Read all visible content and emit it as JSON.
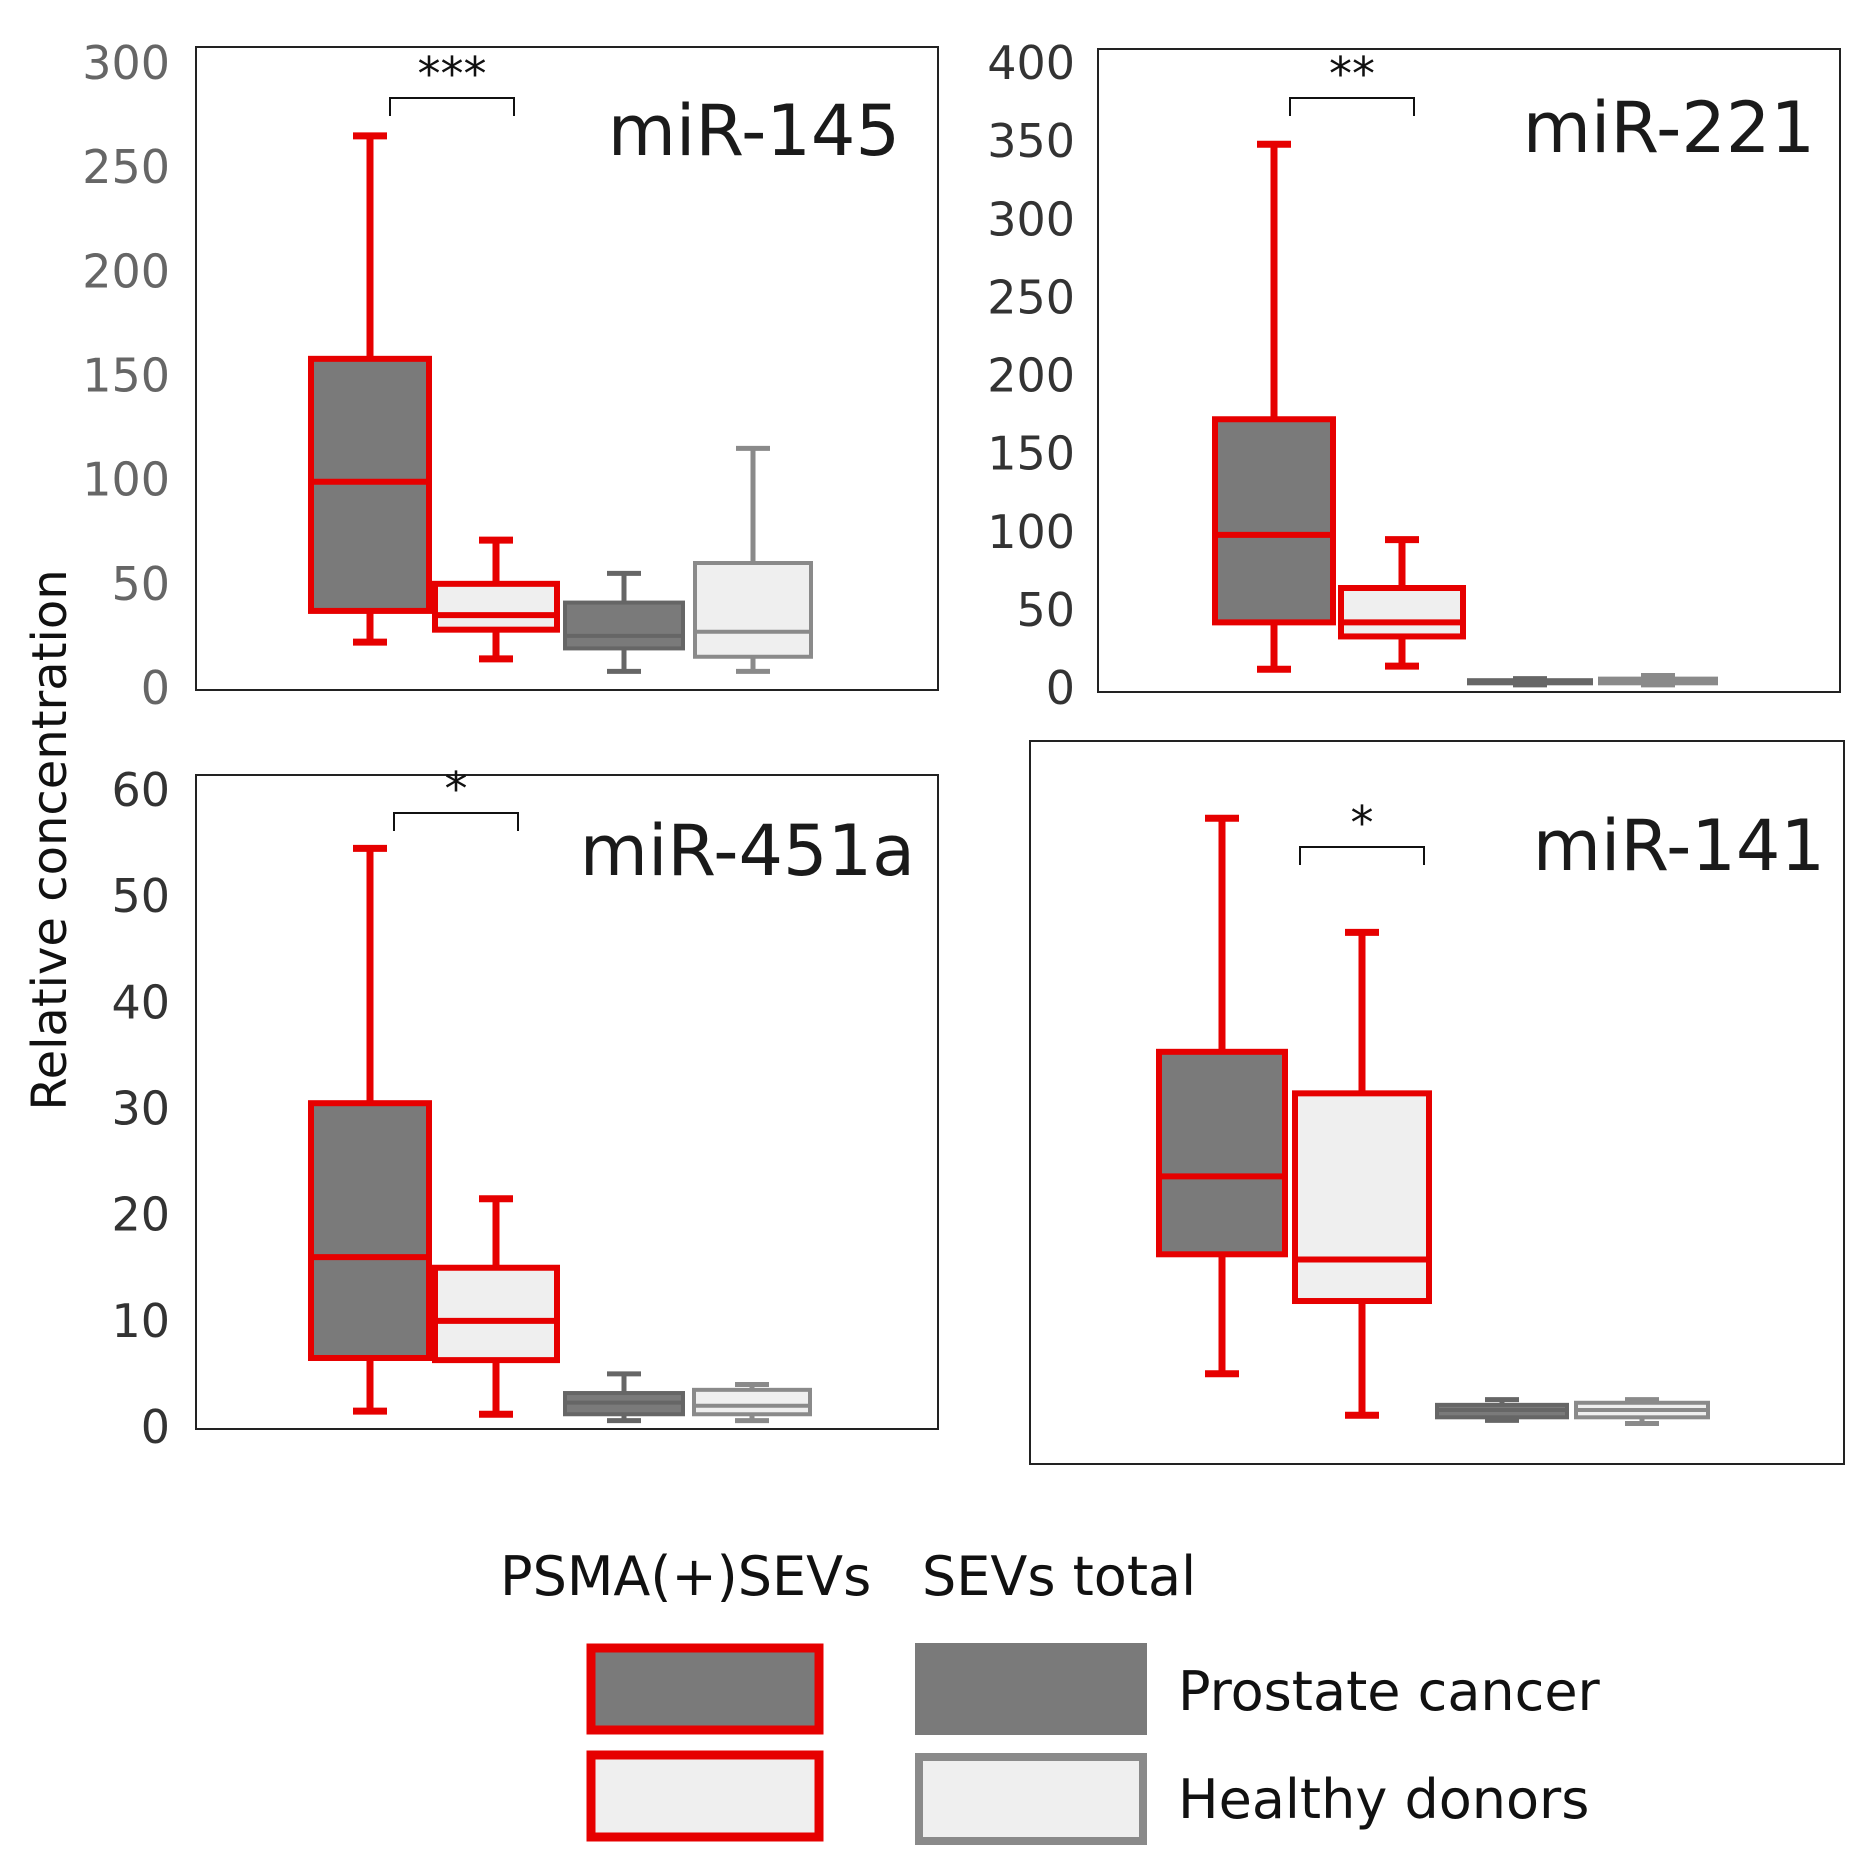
{
  "ylabel": "Relative concentration",
  "colors": {
    "psma_border": "#e60000",
    "prostate_fill": "#7a7a7a",
    "healthy_fill": "#efefef",
    "total_prostate_border": "#666666",
    "total_healthy_border": "#8a8a8a",
    "axis": "#222222"
  },
  "legend": {
    "psma_header": "PSMA(+)SEVs",
    "total_header": "SEVs total",
    "prostate_label": "Prostate cancer",
    "healthy_label": "Healthy donors"
  },
  "chart_data": [
    {
      "type": "box",
      "title": "miR-145",
      "ylim": [
        0,
        300
      ],
      "yticks": [
        0,
        50,
        100,
        150,
        200,
        250,
        300
      ],
      "significance": "***",
      "boxes": [
        {
          "group": "PSMA(+)SEVs",
          "condition": "Prostate cancer",
          "min": 22,
          "q1": 37,
          "median": 99,
          "q3": 158,
          "max": 265
        },
        {
          "group": "PSMA(+)SEVs",
          "condition": "Healthy donors",
          "min": 14,
          "q1": 28,
          "median": 35,
          "q3": 50,
          "max": 71
        },
        {
          "group": "SEVs total",
          "condition": "Prostate cancer",
          "min": 8,
          "q1": 19,
          "median": 25,
          "q3": 41,
          "max": 55
        },
        {
          "group": "SEVs total",
          "condition": "Healthy donors",
          "min": 8,
          "q1": 15,
          "median": 27,
          "q3": 60,
          "max": 115
        }
      ]
    },
    {
      "type": "box",
      "title": "miR-221",
      "ylim": [
        0,
        400
      ],
      "yticks": [
        0,
        50,
        100,
        150,
        200,
        250,
        300,
        350,
        400
      ],
      "significance": "**",
      "boxes": [
        {
          "group": "PSMA(+)SEVs",
          "condition": "Prostate cancer",
          "min": 12,
          "q1": 42,
          "median": 98,
          "q3": 172,
          "max": 348
        },
        {
          "group": "PSMA(+)SEVs",
          "condition": "Healthy donors",
          "min": 14,
          "q1": 33,
          "median": 42,
          "q3": 64,
          "max": 95
        },
        {
          "group": "SEVs total",
          "condition": "Prostate cancer",
          "min": 2,
          "q1": 3,
          "median": 4,
          "q3": 5,
          "max": 6
        },
        {
          "group": "SEVs total",
          "condition": "Healthy donors",
          "min": 2,
          "q1": 3,
          "median": 5,
          "q3": 6,
          "max": 8
        }
      ]
    },
    {
      "type": "box",
      "title": "miR-451a",
      "ylim": [
        0,
        60
      ],
      "yticks": [
        0,
        10,
        20,
        30,
        40,
        50,
        60
      ],
      "significance": "*",
      "boxes": [
        {
          "group": "PSMA(+)SEVs",
          "condition": "Prostate cancer",
          "min": 1.5,
          "q1": 6.5,
          "median": 16,
          "q3": 30.5,
          "max": 54.5
        },
        {
          "group": "PSMA(+)SEVs",
          "condition": "Healthy donors",
          "min": 1.2,
          "q1": 6.3,
          "median": 10,
          "q3": 15,
          "max": 21.5
        },
        {
          "group": "SEVs total",
          "condition": "Prostate cancer",
          "min": 0.6,
          "q1": 1.2,
          "median": 2.3,
          "q3": 3.2,
          "max": 5
        },
        {
          "group": "SEVs total",
          "condition": "Healthy donors",
          "min": 0.6,
          "q1": 1.2,
          "median": 2,
          "q3": 3.5,
          "max": 4
        }
      ]
    },
    {
      "type": "box",
      "title": "miR-141",
      "ylim": [
        -2,
        58
      ],
      "yticks": [],
      "significance": "*",
      "boxes": [
        {
          "group": "PSMA(+)SEVs",
          "condition": "Prostate cancer",
          "min": 4,
          "q1": 15.5,
          "median": 23,
          "q3": 35,
          "max": 57.5
        },
        {
          "group": "PSMA(+)SEVs",
          "condition": "Healthy donors",
          "min": 0,
          "q1": 11,
          "median": 15,
          "q3": 31,
          "max": 46.5
        },
        {
          "group": "SEVs total",
          "condition": "Prostate cancer",
          "min": -0.5,
          "q1": -0.2,
          "median": 0.5,
          "q3": 1,
          "max": 1.5
        },
        {
          "group": "SEVs total",
          "condition": "Healthy donors",
          "min": -0.8,
          "q1": -0.2,
          "median": 0.5,
          "q3": 1.2,
          "max": 1.5
        }
      ]
    }
  ]
}
